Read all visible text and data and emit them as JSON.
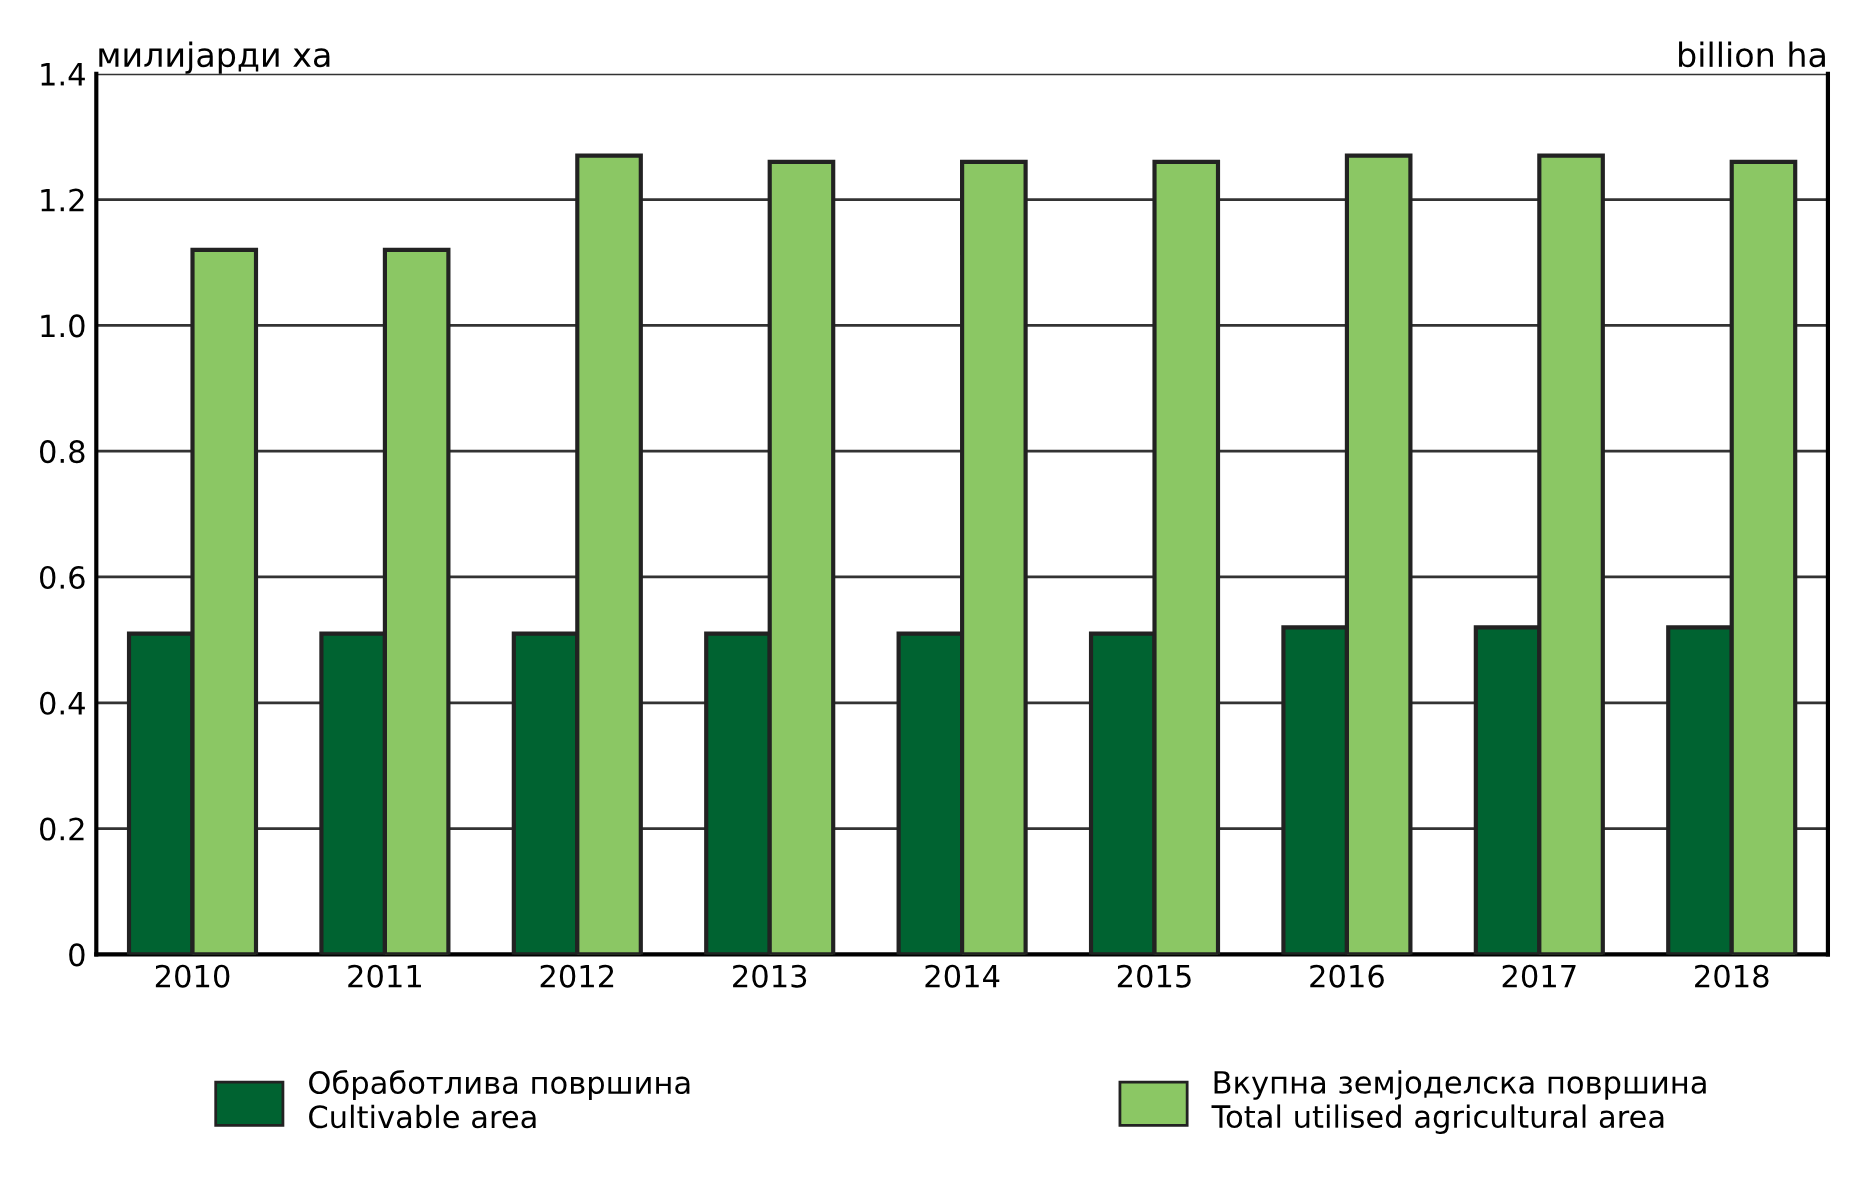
{
  "chart_data": {
    "type": "bar",
    "ylabel": "милијарди ха",
    "annotations": [
      "billion ha"
    ],
    "categories": [
      "2010",
      "2011",
      "2012",
      "2013",
      "2014",
      "2015",
      "2016",
      "2017",
      "2018"
    ],
    "series": [
      {
        "name": "Обработлива површина\nCultivable area",
        "color": "#006331",
        "values": [
          0.51,
          0.51,
          0.51,
          0.51,
          0.51,
          0.51,
          0.52,
          0.52,
          0.52
        ]
      },
      {
        "name": "Вкупна земјоделска површина\nTotal utilised agricultural area",
        "color": "#8bc764",
        "values": [
          1.12,
          1.12,
          1.27,
          1.26,
          1.26,
          1.26,
          1.27,
          1.27,
          1.26
        ]
      }
    ],
    "ylim": [
      0,
      1.4
    ],
    "yticks": [
      {
        "value": 0,
        "label": "0"
      },
      {
        "value": 0.2,
        "label": "0.2"
      },
      {
        "value": 0.4,
        "label": "0.4"
      },
      {
        "value": 0.6,
        "label": "0.6"
      },
      {
        "value": 0.8,
        "label": "0.8"
      },
      {
        "value": 1,
        "label": "1.0"
      },
      {
        "value": 1.2,
        "label": "1.2"
      },
      {
        "value": 1.4,
        "label": "1.4"
      }
    ],
    "grid": "y",
    "legend": "bottom"
  }
}
